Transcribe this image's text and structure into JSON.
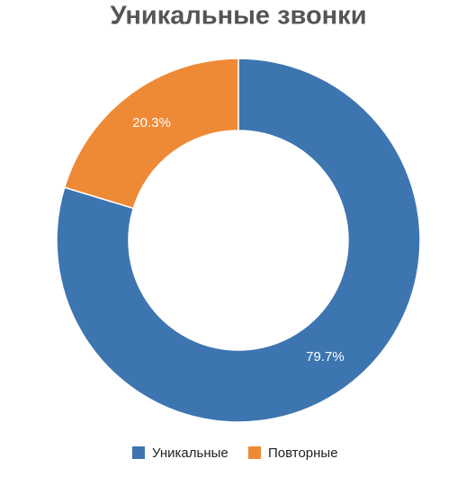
{
  "chart_data": {
    "type": "donut",
    "title": "Уникальные звонки",
    "categories": [
      "Уникальные",
      "Повторные"
    ],
    "values": [
      79.7,
      20.3
    ],
    "value_labels": [
      "79.7%",
      "20.3%"
    ],
    "colors": [
      "#3d75b0",
      "#ee8a36"
    ]
  }
}
